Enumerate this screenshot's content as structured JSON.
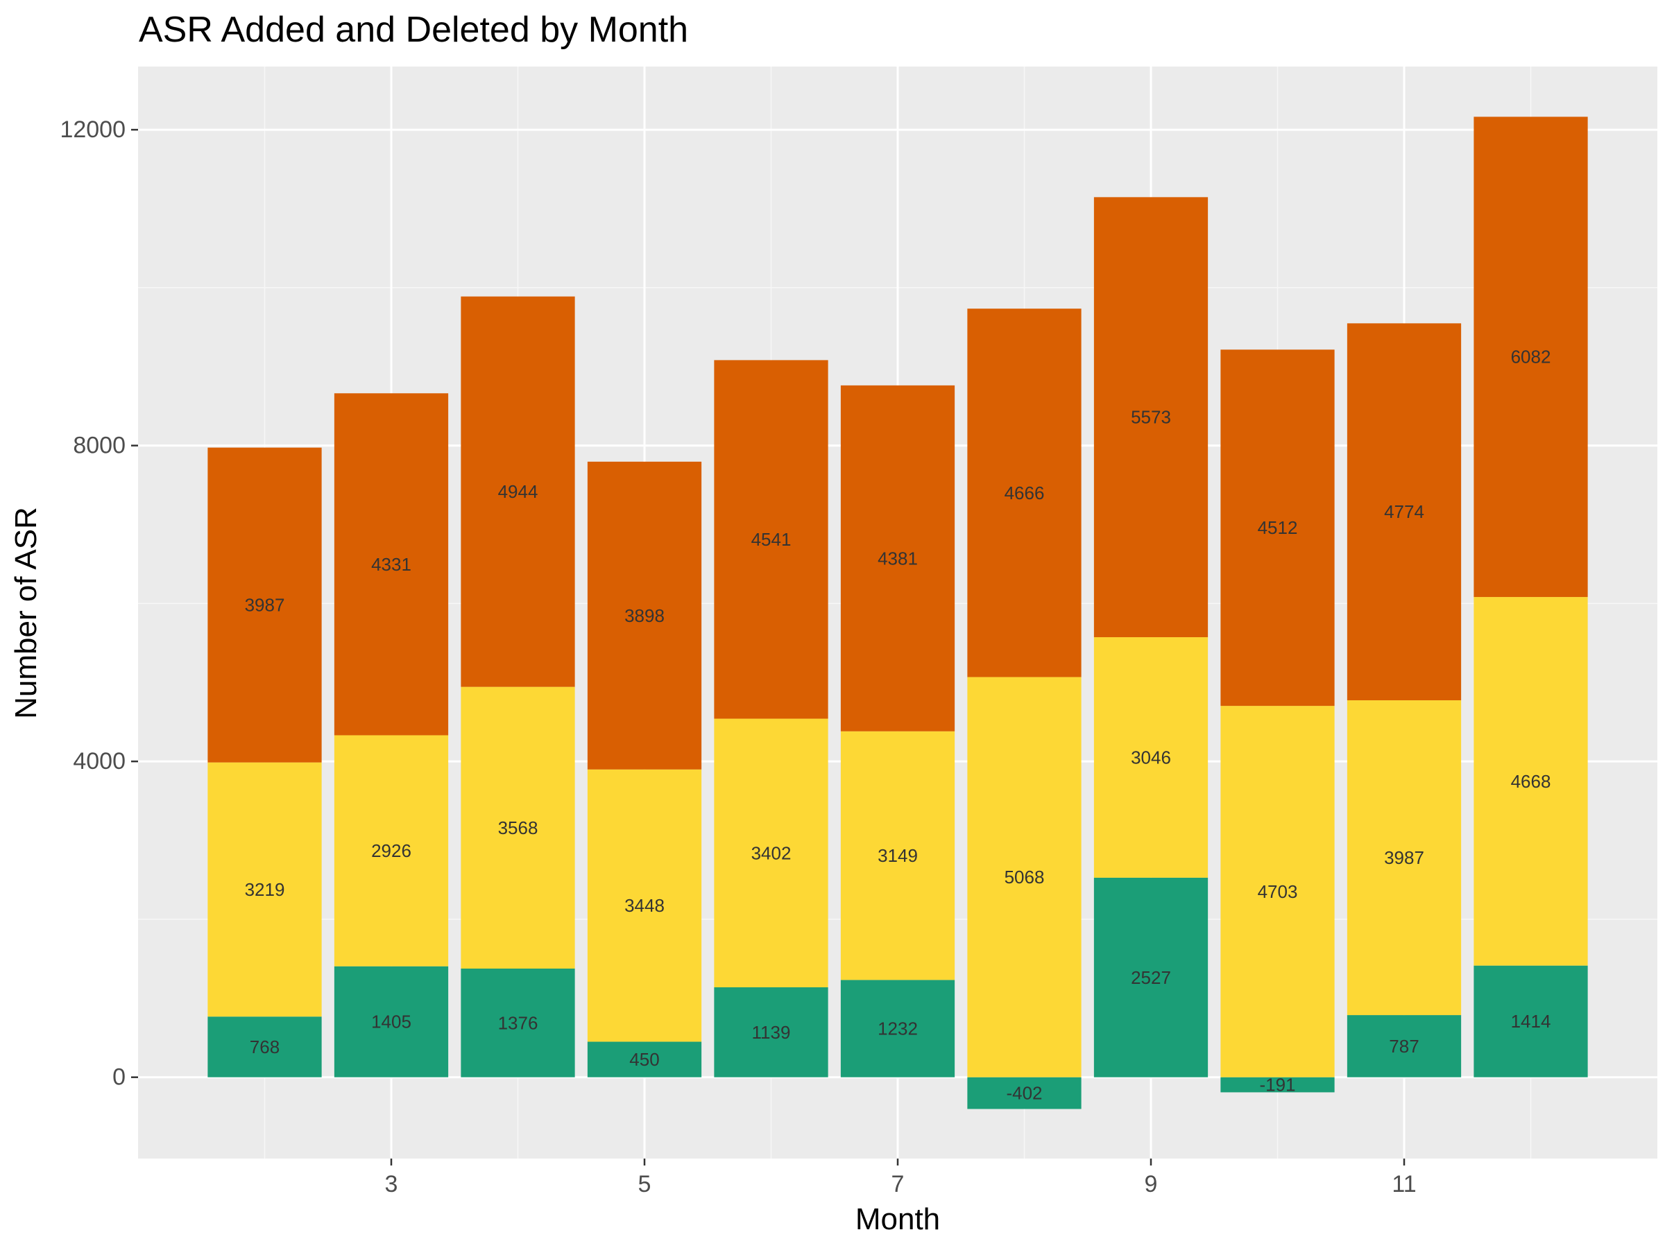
{
  "chart_data": {
    "type": "bar",
    "stacked": true,
    "title": "ASR Added and Deleted by Month",
    "xlabel": "Month",
    "ylabel": "Number of ASR",
    "categories": [
      2,
      3,
      4,
      5,
      6,
      7,
      8,
      9,
      10,
      11,
      12
    ],
    "x_ticks": [
      3,
      5,
      7,
      9,
      11
    ],
    "y_ticks": [
      0,
      4000,
      8000,
      12000
    ],
    "xlim": [
      1,
      13
    ],
    "ylim": [
      -1030,
      12800
    ],
    "grid": true,
    "legend": "none",
    "series": [
      {
        "color": "#1b9e77",
        "values": [
          768,
          1405,
          1376,
          450,
          1139,
          1232,
          -402,
          2527,
          -191,
          787,
          1414
        ]
      },
      {
        "color": "#fdd835",
        "values": [
          3219,
          2926,
          3568,
          3448,
          3402,
          3149,
          5068,
          3046,
          4703,
          3987,
          4668
        ]
      },
      {
        "color": "#d95f02",
        "values": [
          3987,
          4331,
          4944,
          3898,
          4541,
          4381,
          4666,
          5573,
          4512,
          4774,
          6082
        ]
      }
    ]
  }
}
